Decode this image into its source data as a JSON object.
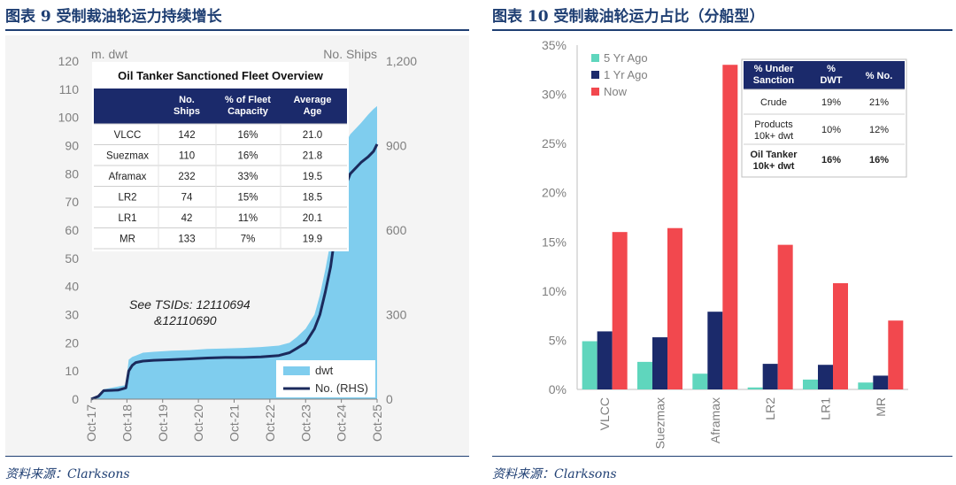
{
  "figure_left": {
    "title": "图表 9    受制裁油轮运力持续增长",
    "source": "资料来源：Clarksons",
    "chart_data": {
      "type": "area",
      "left_axis_label": "m. dwt",
      "right_axis_label": "No. Ships",
      "left_ylim": [
        0,
        120
      ],
      "right_ylim": [
        0,
        1200
      ],
      "left_ticks": [
        "0",
        "10",
        "20",
        "30",
        "40",
        "50",
        "60",
        "70",
        "80",
        "90",
        "100",
        "110",
        "120"
      ],
      "right_ticks": [
        "0",
        "300",
        "600",
        "900",
        "1,200"
      ],
      "x_tick_labels": [
        "Oct-17",
        "Oct-18",
        "Oct-19",
        "Oct-20",
        "Oct-21",
        "Oct-22",
        "Oct-23",
        "Oct-24",
        "Oct-25"
      ],
      "x_tick_times": [
        2017.75,
        2018.75,
        2019.75,
        2020.75,
        2021.75,
        2022.75,
        2023.75,
        2024.75,
        2025.75
      ],
      "xlim": [
        2017.75,
        2025.75
      ],
      "annotation": [
        "See TSIDs: 12110694",
        "&12110690"
      ],
      "series": [
        {
          "name": "dwt",
          "axis": "left",
          "color": "#7fcdee",
          "points": [
            [
              2017.75,
              0
            ],
            [
              2017.95,
              0.5
            ],
            [
              2018.1,
              3.5
            ],
            [
              2018.5,
              4.5
            ],
            [
              2018.72,
              5
            ],
            [
              2018.8,
              14
            ],
            [
              2018.9,
              15
            ],
            [
              2019.0,
              15.5
            ],
            [
              2019.2,
              16.5
            ],
            [
              2019.5,
              16.8
            ],
            [
              2020.0,
              17.2
            ],
            [
              2020.5,
              17.4
            ],
            [
              2021.0,
              17.8
            ],
            [
              2021.5,
              18
            ],
            [
              2022.0,
              18.2
            ],
            [
              2022.5,
              18.5
            ],
            [
              2023.0,
              19
            ],
            [
              2023.3,
              20
            ],
            [
              2023.5,
              22
            ],
            [
              2023.75,
              25
            ],
            [
              2024.0,
              30
            ],
            [
              2024.15,
              37
            ],
            [
              2024.3,
              46
            ],
            [
              2024.45,
              56
            ],
            [
              2024.55,
              68
            ],
            [
              2024.65,
              78
            ],
            [
              2024.75,
              88
            ],
            [
              2025.0,
              94
            ],
            [
              2025.3,
              98
            ],
            [
              2025.5,
              101
            ],
            [
              2025.65,
              103
            ],
            [
              2025.75,
              104
            ]
          ]
        },
        {
          "name": "No. (RHS)",
          "axis": "right",
          "color": "#1b2a5c",
          "points": [
            [
              2017.75,
              0
            ],
            [
              2017.95,
              10
            ],
            [
              2018.1,
              30
            ],
            [
              2018.5,
              32
            ],
            [
              2018.72,
              40
            ],
            [
              2018.8,
              100
            ],
            [
              2018.9,
              120
            ],
            [
              2019.0,
              130
            ],
            [
              2019.2,
              135
            ],
            [
              2019.5,
              138
            ],
            [
              2020.0,
              140
            ],
            [
              2020.5,
              143
            ],
            [
              2021.0,
              146
            ],
            [
              2021.5,
              148
            ],
            [
              2022.0,
              148
            ],
            [
              2022.5,
              150
            ],
            [
              2023.0,
              155
            ],
            [
              2023.3,
              165
            ],
            [
              2023.5,
              180
            ],
            [
              2023.75,
              200
            ],
            [
              2024.0,
              250
            ],
            [
              2024.15,
              300
            ],
            [
              2024.3,
              380
            ],
            [
              2024.45,
              470
            ],
            [
              2024.55,
              560
            ],
            [
              2024.65,
              650
            ],
            [
              2024.75,
              720
            ],
            [
              2025.0,
              800
            ],
            [
              2025.3,
              840
            ],
            [
              2025.5,
              860
            ],
            [
              2025.65,
              880
            ],
            [
              2025.75,
              905
            ]
          ]
        }
      ]
    },
    "inset_table": {
      "title": "Oil Tanker Sanctioned Fleet Overview",
      "headers": [
        "",
        "No.\nShips",
        "% of Fleet\nCapacity",
        "Average\nAge"
      ],
      "rows": [
        [
          "VLCC",
          "142",
          "16%",
          "21.0"
        ],
        [
          "Suezmax",
          "110",
          "16%",
          "21.8"
        ],
        [
          "Aframax",
          "232",
          "33%",
          "19.5"
        ],
        [
          "LR2",
          "74",
          "15%",
          "18.5"
        ],
        [
          "LR1",
          "42",
          "11%",
          "20.1"
        ],
        [
          "MR",
          "133",
          "7%",
          "19.9"
        ]
      ]
    }
  },
  "figure_right": {
    "title": "图表 10    受制裁油轮运力占比（分船型）",
    "source": "资料来源：Clarksons",
    "chart_data": {
      "type": "bar",
      "categories": [
        "VLCC",
        "Suezmax",
        "Aframax",
        "LR2",
        "LR1",
        "MR"
      ],
      "ylim": [
        0,
        35
      ],
      "y_ticks": [
        "0%",
        "5%",
        "10%",
        "15%",
        "20%",
        "25%",
        "30%",
        "35%"
      ],
      "legend_position": "top-left",
      "series": [
        {
          "name": "5 Yr Ago",
          "color": "#5fd6bd",
          "values": [
            4.9,
            2.8,
            1.6,
            0.2,
            1.0,
            0.7
          ]
        },
        {
          "name": "1 Yr Ago",
          "color": "#1b2a6b",
          "values": [
            5.9,
            5.3,
            7.9,
            2.6,
            2.5,
            1.4
          ]
        },
        {
          "name": "Now",
          "color": "#f2484e",
          "values": [
            16.0,
            16.4,
            33.0,
            14.7,
            10.8,
            7.0
          ]
        }
      ]
    },
    "inset_table": {
      "headers": [
        "% Under\nSanction",
        "%\nDWT",
        "% No."
      ],
      "rows": [
        [
          "Crude",
          "19%",
          "21%"
        ],
        [
          "Products\n10k+ dwt",
          "10%",
          "12%"
        ],
        [
          "Oil Tanker\n10k+ dwt",
          "16%",
          "16%"
        ]
      ]
    }
  }
}
